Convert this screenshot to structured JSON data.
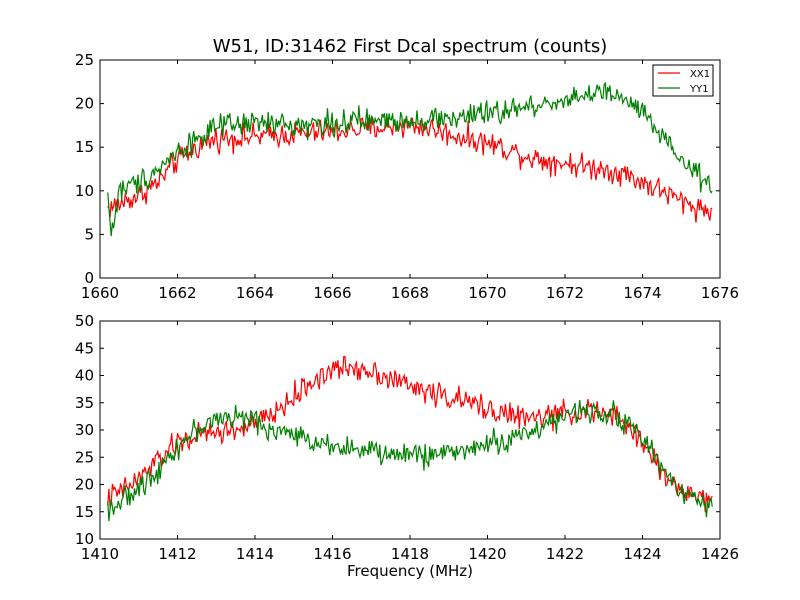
{
  "chart_data": [
    {
      "type": "line",
      "title": "W51, ID:31462 First Dcal spectrum (counts)",
      "xlabel": "",
      "ylabel": "",
      "xlim": [
        1660,
        1676
      ],
      "ylim": [
        0,
        25
      ],
      "xticks": [
        1660,
        1662,
        1664,
        1666,
        1668,
        1670,
        1672,
        1674,
        1676
      ],
      "yticks": [
        0,
        5,
        10,
        15,
        20,
        25
      ],
      "legend": {
        "position": "top-right",
        "entries": [
          "XX1",
          "YY1"
        ]
      },
      "grid": false,
      "series": [
        {
          "name": "XX1",
          "color": "#ff0000",
          "noise": 1.0,
          "points": [
            [
              1660.2,
              8.0
            ],
            [
              1660.5,
              8.5
            ],
            [
              1661.0,
              9.5
            ],
            [
              1661.5,
              11.0
            ],
            [
              1662.0,
              13.5
            ],
            [
              1662.5,
              15.0
            ],
            [
              1663.0,
              16.0
            ],
            [
              1664.0,
              16.2
            ],
            [
              1665.0,
              16.5
            ],
            [
              1666.0,
              16.8
            ],
            [
              1667.0,
              17.2
            ],
            [
              1668.0,
              17.5
            ],
            [
              1668.5,
              17.2
            ],
            [
              1669.0,
              16.5
            ],
            [
              1669.5,
              16.0
            ],
            [
              1670.0,
              15.5
            ],
            [
              1670.5,
              14.8
            ],
            [
              1671.0,
              14.0
            ],
            [
              1671.5,
              13.5
            ],
            [
              1672.0,
              13.2
            ],
            [
              1672.5,
              12.8
            ],
            [
              1673.0,
              12.5
            ],
            [
              1673.5,
              12.0
            ],
            [
              1674.0,
              11.0
            ],
            [
              1674.5,
              10.0
            ],
            [
              1675.0,
              8.8
            ],
            [
              1675.5,
              8.0
            ],
            [
              1675.8,
              7.5
            ]
          ]
        },
        {
          "name": "YY1",
          "color": "#007f00",
          "noise": 1.0,
          "points": [
            [
              1660.2,
              9.5
            ],
            [
              1660.3,
              5.0
            ],
            [
              1660.5,
              10.0
            ],
            [
              1661.0,
              11.0
            ],
            [
              1661.5,
              12.5
            ],
            [
              1662.0,
              14.5
            ],
            [
              1662.5,
              16.0
            ],
            [
              1663.0,
              17.2
            ],
            [
              1664.0,
              17.8
            ],
            [
              1665.0,
              17.5
            ],
            [
              1666.0,
              17.8
            ],
            [
              1667.0,
              18.0
            ],
            [
              1668.0,
              18.2
            ],
            [
              1669.0,
              18.3
            ],
            [
              1670.0,
              18.8
            ],
            [
              1670.5,
              19.2
            ],
            [
              1671.0,
              19.5
            ],
            [
              1671.5,
              20.0
            ],
            [
              1672.0,
              20.5
            ],
            [
              1672.5,
              21.0
            ],
            [
              1673.0,
              21.2
            ],
            [
              1673.5,
              20.5
            ],
            [
              1674.0,
              19.0
            ],
            [
              1674.5,
              16.0
            ],
            [
              1675.0,
              13.5
            ],
            [
              1675.5,
              11.5
            ],
            [
              1675.8,
              10.0
            ]
          ]
        }
      ]
    },
    {
      "type": "line",
      "title": "",
      "xlabel": "Frequency (MHz)",
      "ylabel": "",
      "xlim": [
        1410,
        1426
      ],
      "ylim": [
        10,
        50
      ],
      "xticks": [
        1410,
        1412,
        1414,
        1416,
        1418,
        1420,
        1422,
        1424,
        1426
      ],
      "yticks": [
        10,
        15,
        20,
        25,
        30,
        35,
        40,
        45,
        50
      ],
      "grid": false,
      "series": [
        {
          "color": "#ff0000",
          "noise": 1.6,
          "points": [
            [
              1410.2,
              17.5
            ],
            [
              1410.5,
              18.5
            ],
            [
              1411.0,
              21.0
            ],
            [
              1411.5,
              24.5
            ],
            [
              1412.0,
              27.5
            ],
            [
              1412.5,
              29.0
            ],
            [
              1413.0,
              29.5
            ],
            [
              1413.5,
              30.0
            ],
            [
              1414.0,
              31.0
            ],
            [
              1414.5,
              33.0
            ],
            [
              1415.0,
              36.0
            ],
            [
              1415.5,
              39.0
            ],
            [
              1416.0,
              41.0
            ],
            [
              1416.5,
              41.5
            ],
            [
              1417.0,
              41.0
            ],
            [
              1417.5,
              39.5
            ],
            [
              1418.0,
              38.0
            ],
            [
              1418.5,
              37.0
            ],
            [
              1419.0,
              36.0
            ],
            [
              1419.5,
              35.0
            ],
            [
              1420.0,
              34.0
            ],
            [
              1420.5,
              33.0
            ],
            [
              1421.0,
              32.0
            ],
            [
              1421.5,
              32.5
            ],
            [
              1422.0,
              33.0
            ],
            [
              1422.5,
              33.5
            ],
            [
              1423.0,
              33.0
            ],
            [
              1423.5,
              31.5
            ],
            [
              1424.0,
              28.0
            ],
            [
              1424.5,
              22.0
            ],
            [
              1425.0,
              19.0
            ],
            [
              1425.5,
              17.5
            ],
            [
              1425.8,
              17.5
            ]
          ]
        },
        {
          "color": "#007f00",
          "noise": 1.5,
          "points": [
            [
              1410.2,
              16.0
            ],
            [
              1410.5,
              16.5
            ],
            [
              1411.0,
              19.0
            ],
            [
              1411.5,
              23.0
            ],
            [
              1412.0,
              27.0
            ],
            [
              1412.5,
              30.0
            ],
            [
              1413.0,
              32.0
            ],
            [
              1413.5,
              32.5
            ],
            [
              1414.0,
              31.5
            ],
            [
              1414.5,
              30.0
            ],
            [
              1415.0,
              29.0
            ],
            [
              1415.5,
              28.0
            ],
            [
              1416.0,
              27.5
            ],
            [
              1416.5,
              26.5
            ],
            [
              1417.0,
              26.0
            ],
            [
              1417.5,
              25.5
            ],
            [
              1418.0,
              25.5
            ],
            [
              1418.5,
              25.5
            ],
            [
              1419.0,
              26.0
            ],
            [
              1419.5,
              26.5
            ],
            [
              1420.0,
              27.5
            ],
            [
              1420.5,
              28.0
            ],
            [
              1421.0,
              29.5
            ],
            [
              1421.5,
              31.0
            ],
            [
              1422.0,
              32.5
            ],
            [
              1422.5,
              33.5
            ],
            [
              1423.0,
              33.5
            ],
            [
              1423.5,
              32.0
            ],
            [
              1424.0,
              28.5
            ],
            [
              1424.5,
              23.0
            ],
            [
              1425.0,
              19.0
            ],
            [
              1425.5,
              17.0
            ],
            [
              1425.8,
              16.5
            ]
          ]
        }
      ]
    }
  ]
}
